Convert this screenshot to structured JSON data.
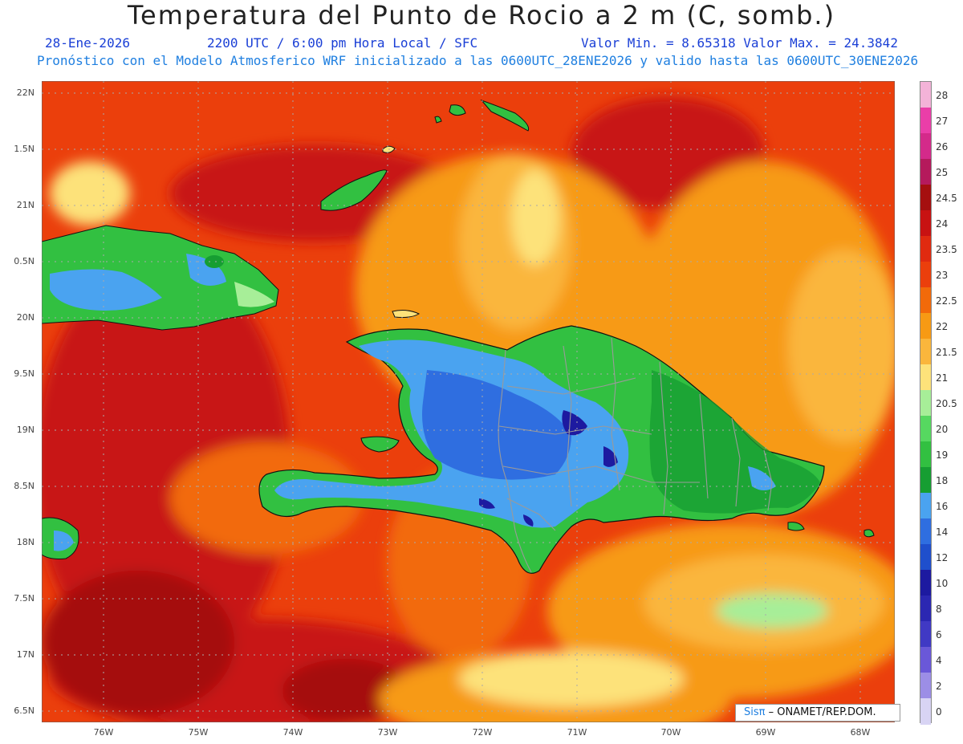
{
  "header": {
    "title": "Temperatura del Punto de Rocio a 2 m (C, somb.)",
    "date": "28-Ene-2026",
    "time": "2200 UTC / 6:00 pm Hora Local / SFC",
    "minmax": "Valor Min. = 8.65318  Valor Max. = 24.3842",
    "model_line": "Pronóstico con el Modelo Atmosferico WRF inicializado a las 0600UTC_28ENE2026 y valido hasta las  0600UTC_30ENE2026"
  },
  "axes": {
    "lat_labels": [
      "22N",
      "1.5N",
      "21N",
      "0.5N",
      "20N",
      "9.5N",
      "19N",
      "8.5N",
      "18N",
      "7.5N",
      "17N",
      "6.5N"
    ],
    "lon_labels": [
      "76W",
      "75W",
      "74W",
      "73W",
      "72W",
      "71W",
      "70W",
      "69W",
      "68W"
    ]
  },
  "colorbar": {
    "levels": [
      "28",
      "27",
      "26",
      "25",
      "24.5",
      "24",
      "23.5",
      "23",
      "22.5",
      "22",
      "21.5",
      "21",
      "20.5",
      "20",
      "19",
      "18",
      "16",
      "14",
      "12",
      "10",
      "8",
      "6",
      "4",
      "2",
      "0"
    ],
    "colors": [
      "#f3b3d8",
      "#ea3ea8",
      "#d42a8a",
      "#b51a5c",
      "#a50f0f",
      "#c81212",
      "#e02a10",
      "#eb3f0c",
      "#f26a0a",
      "#f79a14",
      "#fab63c",
      "#fde27a",
      "#a7ee98",
      "#56d860",
      "#32c041",
      "#169e32",
      "#4aa3f0",
      "#2f6ee0",
      "#1f4fcc",
      "#1d1aa0",
      "#2b27b2",
      "#4039c4",
      "#6a58d8",
      "#9c8ee6",
      "#d8d4f4"
    ]
  },
  "credit": {
    "brand": "Sisπ",
    "text": "– ONAMET/REP.DOM."
  },
  "colors": {
    "title": "#222222",
    "subtitle_blue": "#1a3fd6",
    "model_blue": "#1f7fe0"
  }
}
